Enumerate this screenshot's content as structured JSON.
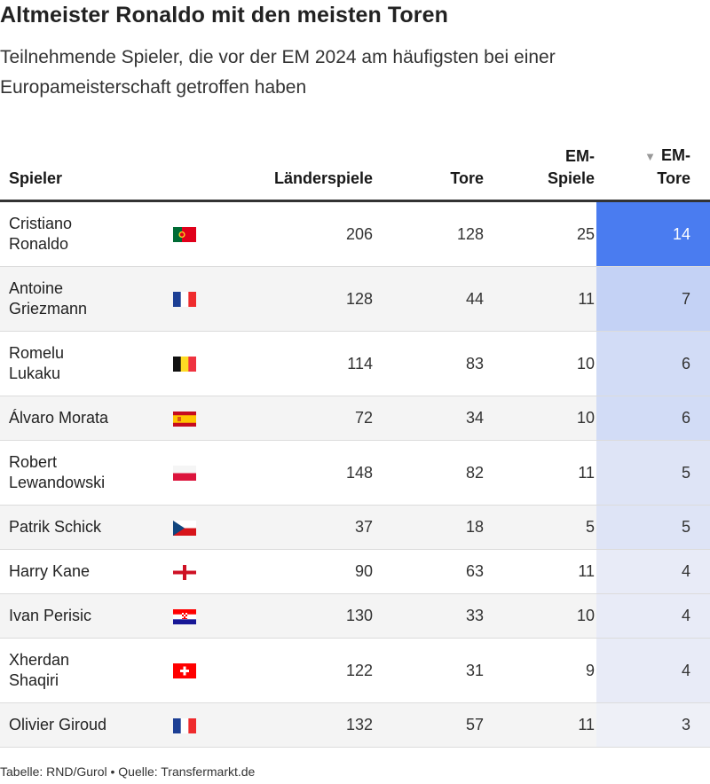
{
  "header": {
    "title": "Altmeister Ronaldo mit den meisten Toren",
    "subtitle": "Teilnehmende Spieler, die vor der EM 2024 am häufigsten bei einer Europameisterschaft getroffen haben"
  },
  "columns": {
    "player": "Spieler",
    "caps": "Länderspiele",
    "goals": "Tore",
    "em_games_1": "EM-",
    "em_games_2": "Spiele",
    "em_goals_1": "EM-",
    "em_goals_2": "Tore",
    "sort_icon": "▼"
  },
  "footer": "Tabelle: RND/Gurol • Quelle: Transfermarkt.de",
  "colors": {
    "heat_max": "#4a7cf0",
    "heat_min": "#eef0f7"
  },
  "chart_data": {
    "type": "table",
    "sorted_by": "EM-Tore",
    "sort_direction": "descending",
    "rows": [
      {
        "name": "Cristiano Ronaldo",
        "lines": [
          "Cristiano",
          "Ronaldo"
        ],
        "flag": "portugal-flag-icon",
        "caps": 206,
        "goals": 128,
        "em_games": 25,
        "em_goals": 14
      },
      {
        "name": "Antoine Griezmann",
        "lines": [
          "Antoine",
          "Griezmann"
        ],
        "flag": "france-flag-icon",
        "caps": 128,
        "goals": 44,
        "em_games": 11,
        "em_goals": 7
      },
      {
        "name": "Romelu Lukaku",
        "lines": [
          "Romelu",
          "Lukaku"
        ],
        "flag": "belgium-flag-icon",
        "caps": 114,
        "goals": 83,
        "em_games": 10,
        "em_goals": 6
      },
      {
        "name": "Álvaro Morata",
        "lines": [
          "Álvaro Morata"
        ],
        "flag": "spain-flag-icon",
        "caps": 72,
        "goals": 34,
        "em_games": 10,
        "em_goals": 6
      },
      {
        "name": "Robert Lewandowski",
        "lines": [
          "Robert",
          "Lewandowski"
        ],
        "flag": "poland-flag-icon",
        "caps": 148,
        "goals": 82,
        "em_games": 11,
        "em_goals": 5
      },
      {
        "name": "Patrik Schick",
        "lines": [
          "Patrik Schick"
        ],
        "flag": "czech-flag-icon",
        "caps": 37,
        "goals": 18,
        "em_games": 5,
        "em_goals": 5
      },
      {
        "name": "Harry Kane",
        "lines": [
          "Harry Kane"
        ],
        "flag": "england-flag-icon",
        "caps": 90,
        "goals": 63,
        "em_games": 11,
        "em_goals": 4
      },
      {
        "name": "Ivan Perisic",
        "lines": [
          "Ivan Perisic"
        ],
        "flag": "croatia-flag-icon",
        "caps": 130,
        "goals": 33,
        "em_games": 10,
        "em_goals": 4
      },
      {
        "name": "Xherdan Shaqiri",
        "lines": [
          "Xherdan",
          "Shaqiri"
        ],
        "flag": "switzerland-flag-icon",
        "caps": 122,
        "goals": 31,
        "em_games": 9,
        "em_goals": 4
      },
      {
        "name": "Olivier Giroud",
        "lines": [
          "Olivier Giroud"
        ],
        "flag": "france-flag-icon",
        "caps": 132,
        "goals": 57,
        "em_games": 11,
        "em_goals": 3
      }
    ]
  }
}
